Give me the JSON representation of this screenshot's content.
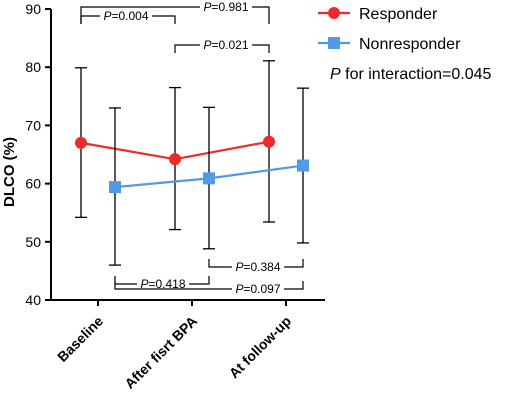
{
  "chart_data": {
    "type": "line",
    "ylabel": "DLCO (%)",
    "ylim": [
      40,
      90
    ],
    "yticks": [
      40,
      50,
      60,
      70,
      80,
      90
    ],
    "categories": [
      "Baseline",
      "After fisrt BPA",
      "At follow-up"
    ],
    "interaction_text": "P for interaction=0.045",
    "series": [
      {
        "name": "Responder",
        "color": "#ee2b2b",
        "marker": "circle",
        "values": [
          67.0,
          64.2,
          67.2
        ],
        "err_low": [
          54.2,
          52.1,
          53.4
        ],
        "err_high": [
          79.9,
          76.5,
          81.1
        ]
      },
      {
        "name": "Nonresponder",
        "color": "#4f9be8",
        "marker": "square",
        "values": [
          59.4,
          60.9,
          63.1
        ],
        "err_low": [
          46.0,
          48.8,
          49.8
        ],
        "err_high": [
          73.0,
          73.1,
          76.4
        ]
      }
    ],
    "comparisons": [
      {
        "text": "P=0.004",
        "series": 0,
        "from": 0,
        "to": 1,
        "side": "top"
      },
      {
        "text": "P=0.981",
        "series": 0,
        "from": 0,
        "to": 2,
        "side": "top"
      },
      {
        "text": "P=0.021",
        "series": 0,
        "from": 1,
        "to": 2,
        "side": "top"
      },
      {
        "text": "P=0.384",
        "series": 1,
        "from": 1,
        "to": 2,
        "side": "bottom"
      },
      {
        "text": "P=0.418",
        "series": 1,
        "from": 0,
        "to": 1,
        "side": "bottom"
      },
      {
        "text": "P=0.097",
        "series": 1,
        "from": 0,
        "to": 2,
        "side": "bottom"
      }
    ]
  }
}
